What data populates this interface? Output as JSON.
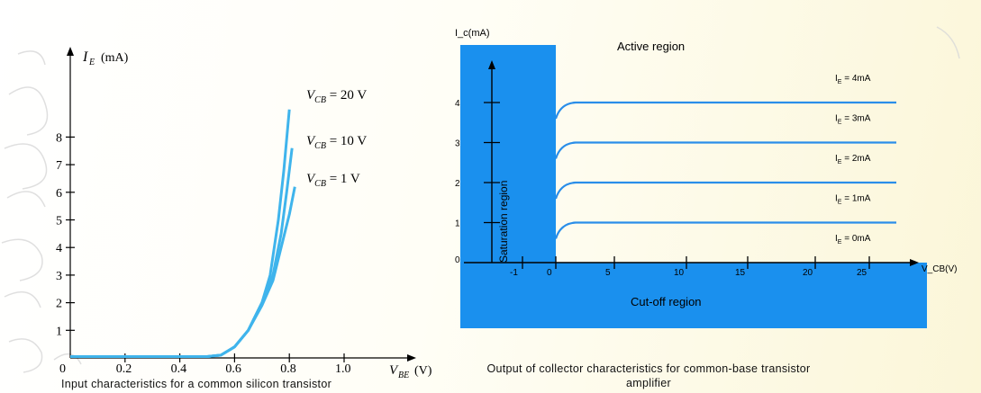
{
  "left_caption": "Input characteristics for a common silicon transistor",
  "right_caption": "Output of collector characteristics for common-base transistor amplifier",
  "chart_data": [
    {
      "type": "line",
      "xlabel": "V_BE (V)",
      "ylabel": "I_E (mA)",
      "x_ticks": [
        "0",
        "0.2",
        "0.4",
        "0.6",
        "0.8",
        "1.0"
      ],
      "y_ticks": [
        "1",
        "2",
        "3",
        "4",
        "5",
        "6",
        "7",
        "8"
      ],
      "xlim": [
        0,
        1.0
      ],
      "ylim": [
        0,
        8
      ],
      "series": [
        {
          "name": "V_CB = 20 V",
          "label_main": "V",
          "label_sub": "CB",
          "label_rest": " = 20 V",
          "points": [
            [
              0,
              0.05
            ],
            [
              0.5,
              0.05
            ],
            [
              0.55,
              0.1
            ],
            [
              0.6,
              0.4
            ],
            [
              0.65,
              1.0
            ],
            [
              0.7,
              2.0
            ],
            [
              0.73,
              3.0
            ],
            [
              0.76,
              5.0
            ],
            [
              0.78,
              6.8
            ],
            [
              0.8,
              9.0
            ]
          ]
        },
        {
          "name": "V_CB = 10 V",
          "label_main": "V",
          "label_sub": "CB",
          "label_rest": " = 10 V",
          "points": [
            [
              0,
              0.05
            ],
            [
              0.5,
              0.05
            ],
            [
              0.55,
              0.1
            ],
            [
              0.6,
              0.4
            ],
            [
              0.65,
              1.0
            ],
            [
              0.7,
              2.0
            ],
            [
              0.74,
              3.0
            ],
            [
              0.77,
              4.5
            ],
            [
              0.79,
              6.0
            ],
            [
              0.81,
              7.6
            ]
          ]
        },
        {
          "name": "V_CB = 1 V",
          "label_main": "V",
          "label_sub": "CB",
          "label_rest": " = 1 V",
          "points": [
            [
              0,
              0.05
            ],
            [
              0.5,
              0.05
            ],
            [
              0.55,
              0.1
            ],
            [
              0.6,
              0.4
            ],
            [
              0.65,
              1.0
            ],
            [
              0.7,
              1.9
            ],
            [
              0.74,
              2.8
            ],
            [
              0.77,
              4.0
            ],
            [
              0.8,
              5.2
            ],
            [
              0.82,
              6.2
            ]
          ]
        }
      ],
      "line_color": "#3fb4ec",
      "grid": false
    },
    {
      "type": "line",
      "ylabel": "I_c(mA)",
      "xlabel": "V_CB(V)",
      "x_ticks": [
        "-1",
        "0",
        "5",
        "10",
        "15",
        "20",
        "25"
      ],
      "y_ticks": [
        "0",
        "1",
        "2",
        "3",
        "4"
      ],
      "region_labels": [
        "Active region",
        "Saturation region",
        "Cut-off region"
      ],
      "series": [
        {
          "name": "I_E = 4mA",
          "label": "I",
          "label_sub": "E",
          "label_rest": " = 4mA",
          "level": 4
        },
        {
          "name": "I_E = 3mA",
          "label": "I",
          "label_sub": "E",
          "label_rest": " = 3mA",
          "level": 3
        },
        {
          "name": "I_E = 2mA",
          "label": "I",
          "label_sub": "E",
          "label_rest": " = 2mA",
          "level": 2
        },
        {
          "name": "I_E = 1mA",
          "label": "I",
          "label_sub": "E",
          "label_rest": " = 1mA",
          "level": 1
        },
        {
          "name": "I_E = 0mA",
          "label": "I",
          "label_sub": "E",
          "label_rest": " = 0mA",
          "level": 0
        }
      ],
      "region_color": "#1a90ee",
      "line_color": "#2a8ee9",
      "grid": false
    }
  ]
}
